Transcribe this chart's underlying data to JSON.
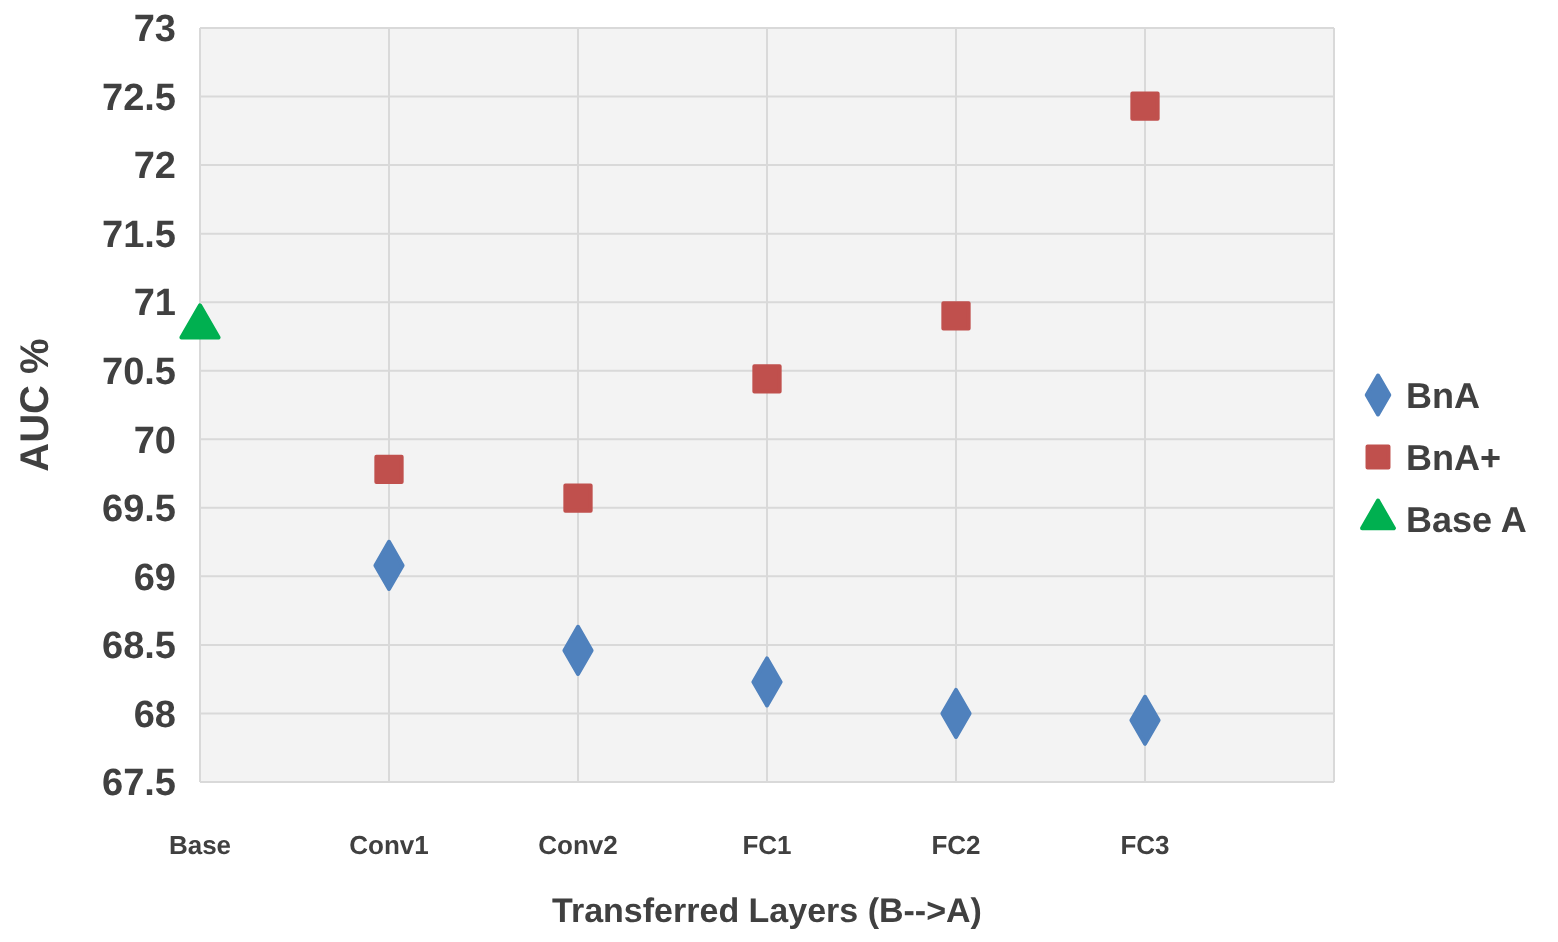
{
  "chart_data": {
    "type": "scatter",
    "xlabel": "Transferred Layers (B-->A)",
    "ylabel": "AUC %",
    "categories": [
      "Base",
      "Conv1",
      "Conv2",
      "FC1",
      "FC2",
      "FC3",
      null
    ],
    "series": [
      {
        "name": "BnA",
        "color": "#4f81bd",
        "marker": "diamond",
        "values": [
          null,
          69.08,
          68.46,
          68.23,
          68.0,
          67.95,
          null
        ]
      },
      {
        "name": "BnA+",
        "color": "#c0504d",
        "marker": "square",
        "values": [
          null,
          69.78,
          69.57,
          70.44,
          70.9,
          72.43,
          null
        ]
      },
      {
        "name": "Base A",
        "color": "#00b050",
        "marker": "triangle",
        "values": [
          70.82,
          null,
          null,
          null,
          null,
          null,
          null
        ]
      }
    ],
    "ylim": [
      67.5,
      73
    ],
    "yticks": [
      67.5,
      68,
      68.5,
      69,
      69.5,
      70,
      70.5,
      71,
      71.5,
      72,
      72.5,
      73
    ],
    "grid": true,
    "legend": "right"
  }
}
